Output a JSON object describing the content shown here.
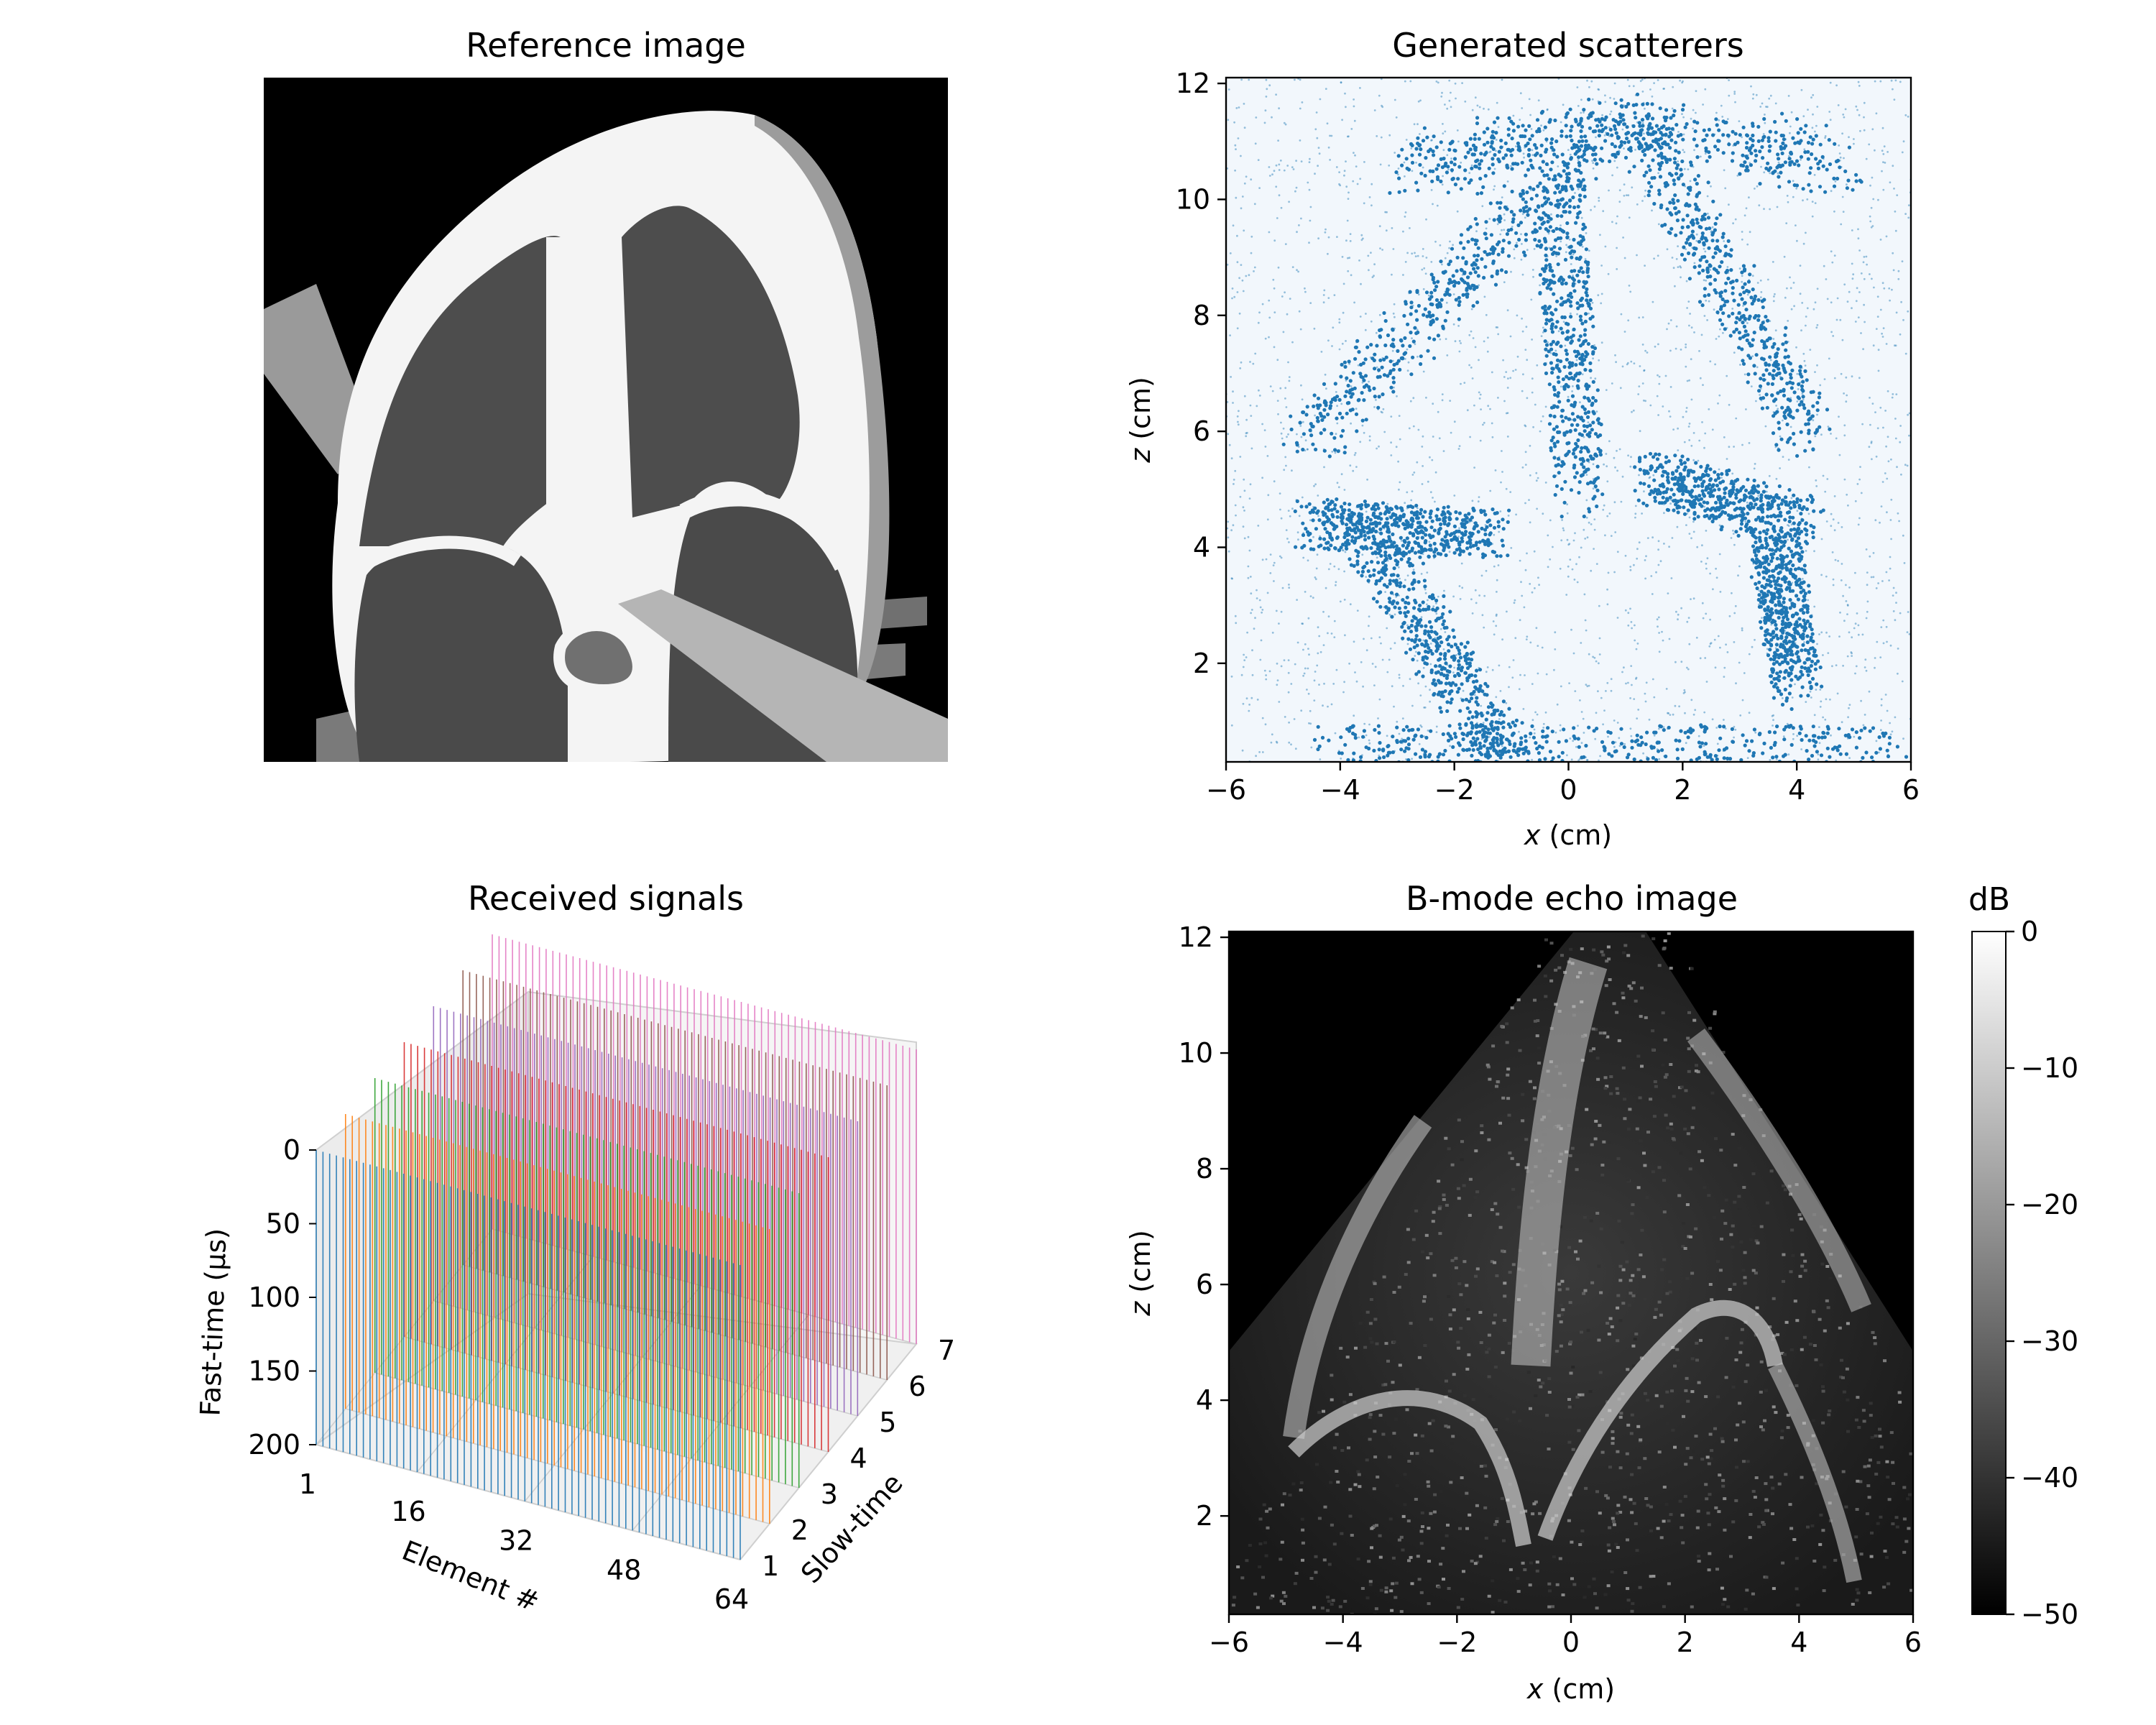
{
  "figure": {
    "panels": {
      "reference": {
        "title": "Reference image"
      },
      "scatter": {
        "title": "Generated scatterers"
      },
      "signals": {
        "title": "Received signals"
      },
      "bmode": {
        "title": "B-mode echo image"
      }
    }
  },
  "chart_data": [
    {
      "type": "image",
      "title": "Reference image",
      "content": "grayscale cardiac phantom (apical four-chamber view)"
    },
    {
      "type": "scatter",
      "title": "Generated scatterers",
      "xlabel_var": "x",
      "xlabel_unit": " (cm)",
      "ylabel_var": "z",
      "ylabel_unit": " (cm)",
      "xlim": [
        -6,
        6
      ],
      "ylim": [
        12.1,
        0.3
      ],
      "y_inverted": true,
      "xticks": [
        -6,
        -4,
        -2,
        0,
        2,
        4,
        6
      ],
      "yticks": [
        2,
        4,
        6,
        8,
        10,
        12
      ],
      "xtick_labels": [
        "−6",
        "−4",
        "−2",
        "0",
        "2",
        "4",
        "6"
      ],
      "ytick_labels": [
        "2",
        "4",
        "6",
        "8",
        "10",
        "12"
      ],
      "color": "#1f77b4"
    },
    {
      "type": "line3d",
      "title": "Received signals",
      "xlabel": "Element #",
      "ylabel": "Slow-time",
      "zlabel": "Fast-time (μs)",
      "element_ticks": [
        "1",
        "16",
        "32",
        "48",
        "64"
      ],
      "slowtime_ticks": [
        "1",
        "2",
        "3",
        "4",
        "5",
        "6",
        "7"
      ],
      "fasttime_ticks": [
        "0",
        "50",
        "100",
        "150",
        "200"
      ],
      "series_colors": [
        "#1f77b4",
        "#ff7f0e",
        "#2ca02c",
        "#d62728",
        "#9467bd",
        "#8c564b",
        "#e377c2"
      ]
    },
    {
      "type": "heatmap",
      "title": "B-mode echo image",
      "xlabel_var": "x",
      "xlabel_unit": " (cm)",
      "ylabel_var": "z",
      "ylabel_unit": " (cm)",
      "xlim": [
        -6,
        6
      ],
      "ylim": [
        12.1,
        0.3
      ],
      "xtick_labels": [
        "−6",
        "−4",
        "−2",
        "0",
        "2",
        "4",
        "6"
      ],
      "ytick_labels": [
        "2",
        "4",
        "6",
        "8",
        "10",
        "12"
      ],
      "colormap": "gray",
      "colorbar": {
        "label": "dB",
        "range": [
          -50,
          0
        ],
        "ticks": [
          0,
          -10,
          -20,
          -30,
          -40,
          -50
        ],
        "tick_labels": [
          "0",
          "−10",
          "−20",
          "−30",
          "−40",
          "−50"
        ]
      }
    }
  ]
}
